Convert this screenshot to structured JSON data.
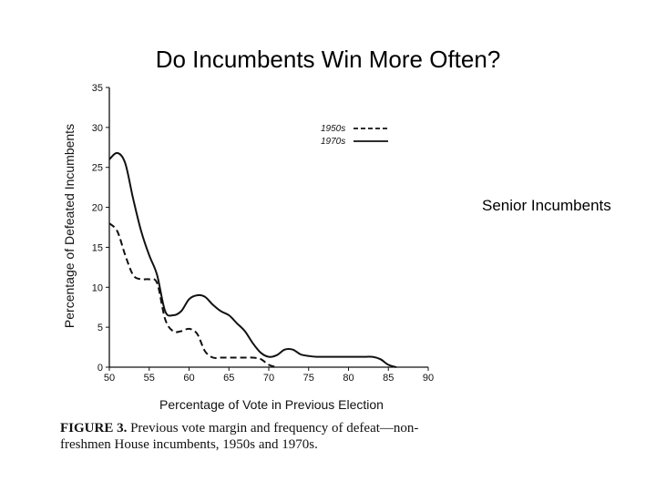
{
  "slide": {
    "title": "Do Incumbents Win More Often?",
    "side_label": "Senior Incumbents"
  },
  "caption": {
    "figure_label": "FIGURE 3.",
    "line1": "Previous vote margin and frequency of defeat—non-",
    "line2": "freshmen House incumbents, 1950s and 1970s."
  },
  "chart_data": {
    "type": "line",
    "xlabel": "Percentage of Vote in Previous Election",
    "ylabel": "Percentage of Defeated Incumbents",
    "xlim": [
      50,
      90
    ],
    "ylim": [
      0,
      35
    ],
    "xticks": [
      50,
      55,
      60,
      65,
      70,
      75,
      80,
      85,
      90
    ],
    "yticks": [
      0,
      5,
      10,
      15,
      20,
      25,
      30,
      35
    ],
    "legend_position": "top-right",
    "grid": false,
    "series": [
      {
        "name": "1950s",
        "style": "dashed",
        "x": [
          50,
          51,
          52,
          53,
          54,
          55,
          56,
          57,
          58,
          59,
          60,
          61,
          62,
          63,
          64,
          65,
          66,
          67,
          68,
          69,
          70,
          71
        ],
        "y": [
          18,
          17,
          14,
          11.5,
          11,
          11,
          10.5,
          6,
          4.5,
          4.5,
          4.8,
          4.2,
          2,
          1.2,
          1.2,
          1.2,
          1.2,
          1.2,
          1.2,
          1.0,
          0.3,
          0
        ]
      },
      {
        "name": "1970s",
        "style": "solid",
        "x": [
          50,
          51,
          52,
          53,
          54,
          55,
          56,
          57,
          58,
          59,
          60,
          61,
          62,
          63,
          64,
          65,
          66,
          67,
          68,
          69,
          70,
          71,
          72,
          73,
          74,
          75,
          76,
          78,
          80,
          82,
          83,
          84,
          85,
          86
        ],
        "y": [
          26,
          26.8,
          25.5,
          21,
          17,
          14,
          11.5,
          7,
          6.5,
          7,
          8.5,
          9,
          8.8,
          7.8,
          7,
          6.5,
          5.5,
          4.5,
          3,
          1.8,
          1.3,
          1.5,
          2.2,
          2.2,
          1.6,
          1.4,
          1.3,
          1.3,
          1.3,
          1.3,
          1.3,
          1.0,
          0.3,
          0
        ]
      }
    ]
  }
}
